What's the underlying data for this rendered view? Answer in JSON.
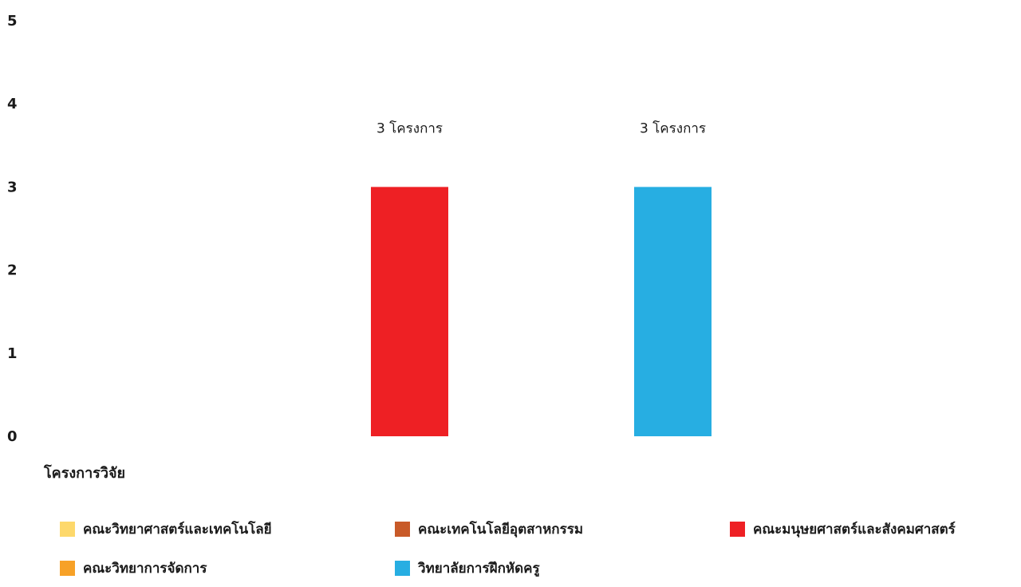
{
  "chart_data": {
    "type": "bar",
    "categories": [
      "คณะวิทยาศาสตร์และเทคโนโลยี",
      "คณะเทคโนโลยีอุตสาหกรรม",
      "คณะมนุษยศาสตร์และสังคมศาสตร์",
      "คณะวิทยาการจัดการ",
      "วิทยาลัยการฝึกหัดครู"
    ],
    "values": [
      0,
      0,
      3,
      0,
      3
    ],
    "data_labels": [
      "",
      "",
      "3 โครงการ",
      "",
      "3 โครงการ"
    ],
    "colors": [
      "#fdd86b",
      "#c85a28",
      "#ee2024",
      "#f7a127",
      "#27aee2"
    ],
    "xlabel": "โครงการวิจัย",
    "ylabel": "",
    "ylim": [
      0,
      5
    ],
    "yticks": [
      "0",
      "1",
      "2",
      "3",
      "4",
      "5"
    ],
    "grid": false,
    "legend_position": "bottom"
  }
}
